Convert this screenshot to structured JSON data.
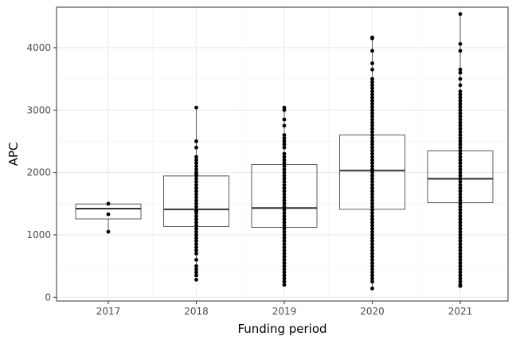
{
  "chart_data": {
    "type": "boxplot",
    "title": "",
    "xlabel": "Funding period",
    "ylabel": "APC",
    "ylim": [
      -60,
      4650
    ],
    "yticks": [
      0,
      1000,
      2000,
      3000,
      4000
    ],
    "ytick_labels": [
      "0",
      "1000",
      "2000",
      "3000",
      "4000"
    ],
    "grid": true,
    "legend": "none",
    "categories": [
      "2017",
      "2018",
      "2019",
      "2020",
      "2021"
    ],
    "boxes": [
      {
        "category": "2017",
        "q1": 1255,
        "median": 1420,
        "q3": 1495,
        "whisker_low": 1050,
        "whisker_high": 1500
      },
      {
        "category": "2018",
        "q1": 1135,
        "median": 1410,
        "q3": 1945,
        "whisker_low": 280,
        "whisker_high": 3040
      },
      {
        "category": "2019",
        "q1": 1120,
        "median": 1430,
        "q3": 2130,
        "whisker_low": 200,
        "whisker_high": 3040
      },
      {
        "category": "2020",
        "q1": 1410,
        "median": 2030,
        "q3": 2600,
        "whisker_low": 140,
        "whisker_high": 4165
      },
      {
        "category": "2021",
        "q1": 1515,
        "median": 1900,
        "q3": 2345,
        "whisker_low": 180,
        "whisker_high": 4540
      }
    ],
    "points": [
      {
        "category": "2017",
        "values": [
          1500,
          1330,
          1050
        ]
      },
      {
        "category": "2018",
        "values": [
          3040,
          2500,
          2400,
          2250,
          2200,
          2150,
          2100,
          2050,
          2000,
          1980,
          1950,
          1900,
          1850,
          1800,
          1750,
          1700,
          1650,
          1600,
          1550,
          1500,
          1450,
          1400,
          1380,
          1350,
          1300,
          1250,
          1200,
          1150,
          1100,
          1050,
          1000,
          950,
          900,
          850,
          800,
          750,
          700,
          600,
          500,
          450,
          400,
          350,
          280
        ]
      },
      {
        "category": "2019",
        "values": [
          3040,
          3000,
          2850,
          2750,
          2600,
          2550,
          2500,
          2450,
          2400,
          2300,
          2250,
          2200,
          2150,
          2100,
          2050,
          2000,
          1950,
          1900,
          1850,
          1800,
          1750,
          1700,
          1650,
          1600,
          1550,
          1500,
          1450,
          1400,
          1350,
          1300,
          1250,
          1200,
          1150,
          1100,
          1050,
          1000,
          950,
          900,
          850,
          800,
          750,
          700,
          650,
          600,
          550,
          500,
          450,
          400,
          350,
          300,
          250,
          200
        ]
      },
      {
        "category": "2020",
        "values": [
          4165,
          4150,
          3950,
          3750,
          3650,
          3500,
          3450,
          3400,
          3350,
          3300,
          3250,
          3200,
          3150,
          3100,
          3050,
          3000,
          2950,
          2900,
          2850,
          2800,
          2750,
          2700,
          2650,
          2600,
          2550,
          2500,
          2450,
          2400,
          2350,
          2300,
          2250,
          2200,
          2150,
          2100,
          2050,
          2000,
          1950,
          1900,
          1850,
          1800,
          1750,
          1700,
          1650,
          1600,
          1550,
          1500,
          1450,
          1400,
          1350,
          1300,
          1250,
          1200,
          1150,
          1100,
          1050,
          1000,
          950,
          900,
          850,
          800,
          750,
          700,
          650,
          600,
          550,
          500,
          450,
          400,
          350,
          300,
          250,
          140
        ]
      },
      {
        "category": "2021",
        "values": [
          4540,
          4060,
          3950,
          3650,
          3600,
          3500,
          3400,
          3300,
          3250,
          3200,
          3150,
          3100,
          3050,
          3000,
          2950,
          2900,
          2850,
          2800,
          2750,
          2700,
          2650,
          2600,
          2550,
          2500,
          2450,
          2400,
          2350,
          2300,
          2250,
          2200,
          2150,
          2100,
          2050,
          2000,
          1950,
          1900,
          1850,
          1800,
          1750,
          1700,
          1650,
          1600,
          1550,
          1500,
          1450,
          1400,
          1350,
          1300,
          1250,
          1200,
          1150,
          1100,
          1050,
          1000,
          950,
          900,
          850,
          800,
          750,
          700,
          650,
          600,
          550,
          500,
          450,
          400,
          350,
          300,
          250,
          200,
          180
        ]
      }
    ]
  }
}
